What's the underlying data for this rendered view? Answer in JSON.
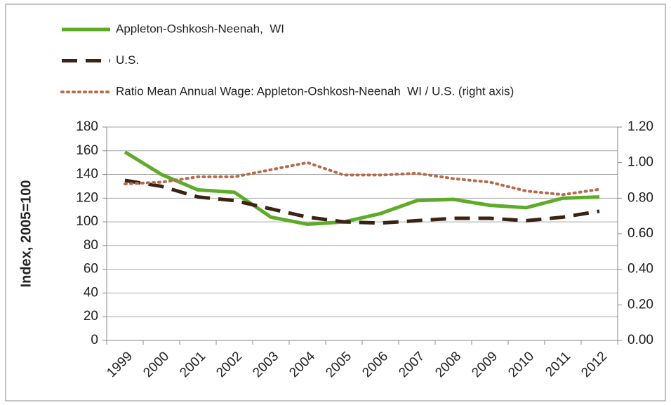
{
  "chart_data": {
    "type": "line",
    "y_label": "Index, 2005=100",
    "categories": [
      "1999",
      "2000",
      "2001",
      "2002",
      "2003",
      "2004",
      "2005",
      "2006",
      "2007",
      "2008",
      "2009",
      "2010",
      "2011",
      "2012"
    ],
    "series": [
      {
        "name": "Appleton-Oshkosh-Neenah,  WI",
        "color": "#5eab2a",
        "style": "solid",
        "values": [
          159,
          140,
          127,
          125,
          104,
          98,
          100,
          107,
          118,
          119,
          114,
          112,
          120,
          121
        ]
      },
      {
        "name": "U.S.",
        "color": "#3b2314",
        "style": "dashed",
        "values": [
          135,
          130,
          121,
          118,
          111,
          104,
          100,
          99,
          101,
          103,
          103,
          101,
          104,
          109
        ]
      },
      {
        "name": "Ratio Mean Annual Wage: Appleton-Oshkosh-Neenah  WI / U.S. (right axis)",
        "color": "#b8694c",
        "style": "dotted",
        "axis": "y2",
        "values": [
          0.88,
          0.89,
          0.92,
          0.92,
          0.96,
          1.0,
          0.93,
          0.93,
          0.94,
          0.91,
          0.89,
          0.84,
          0.82,
          0.85
        ]
      }
    ],
    "ylim": [
      0,
      180
    ],
    "yticks": [
      0,
      20,
      40,
      60,
      80,
      100,
      120,
      140,
      160,
      180
    ],
    "y2lim": [
      0,
      1.2
    ],
    "y2ticks": [
      {
        "value": 0,
        "label": "0.00"
      },
      {
        "value": 0.2,
        "label": "0.20"
      },
      {
        "value": 0.4,
        "label": "0.40"
      },
      {
        "value": 0.6,
        "label": "0.60"
      },
      {
        "value": 0.8,
        "label": "0.80"
      },
      {
        "value": 1,
        "label": "1.00"
      },
      {
        "value": 1.2,
        "label": "1.20"
      }
    ],
    "grid": true
  }
}
